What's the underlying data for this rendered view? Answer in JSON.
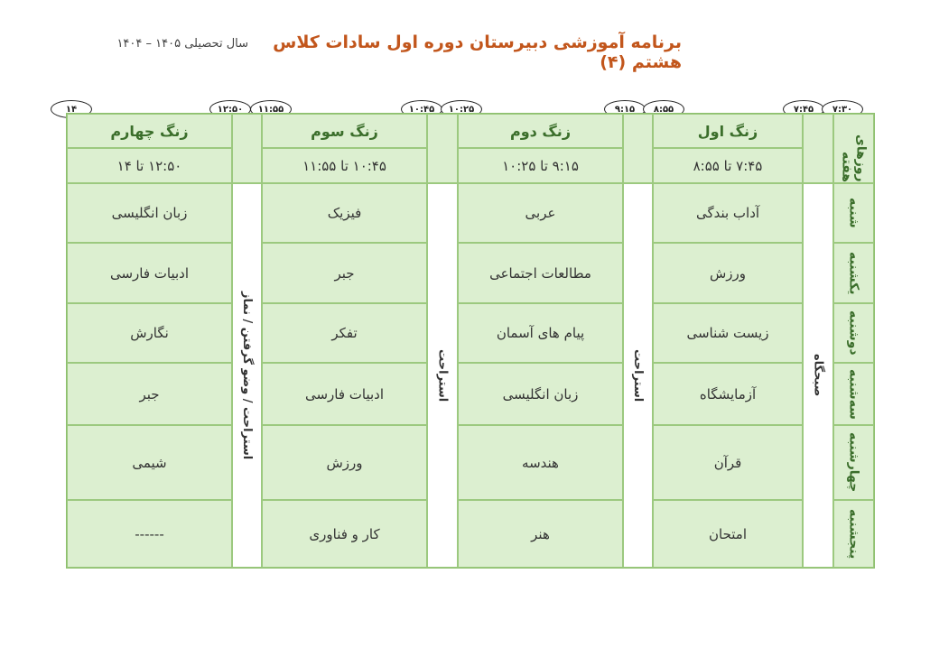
{
  "title": "برنامه آموزشی دبیرستان دوره اول سادات کلاس هشتم (۴)",
  "year": "سال تحصیلی ۱۴۰۵ – ۱۴۰۴",
  "times": [
    "۱۴",
    "۱۲:۵۰",
    "۱۱:۵۵",
    "۱۰:۴۵",
    "۱۰:۲۵",
    "۹:۱۵",
    "۸:۵۵",
    "۷:۴۵",
    "۷:۳۰"
  ],
  "days_header": "روزهای هفته",
  "days": [
    "شنبه",
    "یکشنبه",
    "دوشنبه",
    "سه‌شنبه",
    "چهارشنبه",
    "پنجشنبه"
  ],
  "morning": "صبحگاه",
  "breaks": {
    "first": "استراحت",
    "second": "استراحت",
    "third": "استراحت / وضو گرفتن / نماز"
  },
  "bells": [
    {
      "name": "زنگ اول",
      "time": "۷:۴۵ تا ۸:۵۵",
      "subjects": [
        "آداب بندگی",
        "ورزش",
        "زیست شناسی",
        "آزمایشگاه",
        "قرآن",
        "امتحان"
      ]
    },
    {
      "name": "زنگ دوم",
      "time": "۹:۱۵ تا ۱۰:۲۵",
      "subjects": [
        "عربی",
        "مطالعات اجتماعی",
        "پیام های آسمان",
        "زبان انگلیسی",
        "هندسه",
        "هنر"
      ]
    },
    {
      "name": "زنگ سوم",
      "time": "۱۰:۴۵ تا ۱۱:۵۵",
      "subjects": [
        "فیزیک",
        "جبر",
        "تفکر",
        "ادبیات فارسی",
        "ورزش",
        "کار و فناوری"
      ]
    },
    {
      "name": "زنگ چهارم",
      "time": "۱۲:۵۰ تا ۱۴",
      "subjects": [
        "زبان انگلیسی",
        "ادبیات فارسی",
        "نگارش",
        "جبر",
        "شیمی",
        "------"
      ]
    }
  ],
  "colors": {
    "title": "#c2561c",
    "header": "#3b6e2b",
    "cell": "#dcefd0",
    "border": "#9cc97f"
  }
}
